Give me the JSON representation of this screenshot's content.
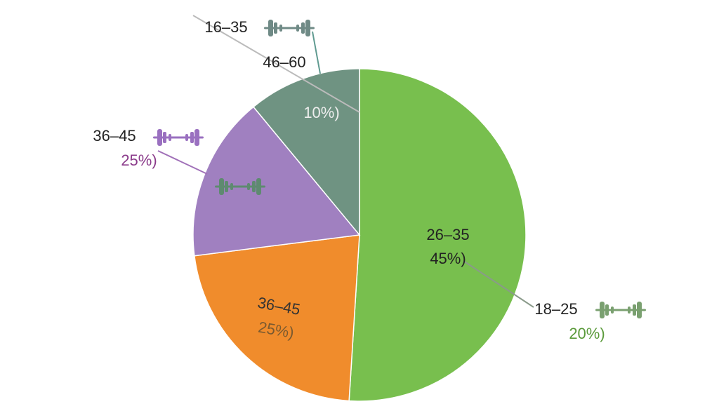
{
  "chart_data": {
    "type": "pie",
    "categories": [
      null,
      null,
      null,
      null
    ],
    "values": [
      51,
      22,
      16,
      11
    ],
    "colors": [
      "#78bf4e",
      "#f08c2c",
      "#a080c0",
      "#6f9382"
    ],
    "annotations": [
      {
        "text": "16–35",
        "color": "#222222"
      },
      {
        "text": "46–60",
        "color": "#222222"
      },
      {
        "text": "10%)",
        "color": "#eeeeee"
      },
      {
        "text": "36–45",
        "color": "#222222"
      },
      {
        "text": "25%)",
        "color": "#8a3a8a"
      },
      {
        "text": "26–35",
        "color": "#222222"
      },
      {
        "text": "45%)",
        "color": "#222222"
      },
      {
        "text": "36–45",
        "color": "#333333"
      },
      {
        "text": "25%)",
        "color": "#7a5a30"
      },
      {
        "text": "18–25",
        "color": "#222222"
      },
      {
        "text": "20%)",
        "color": "#5a9a3a"
      }
    ]
  }
}
